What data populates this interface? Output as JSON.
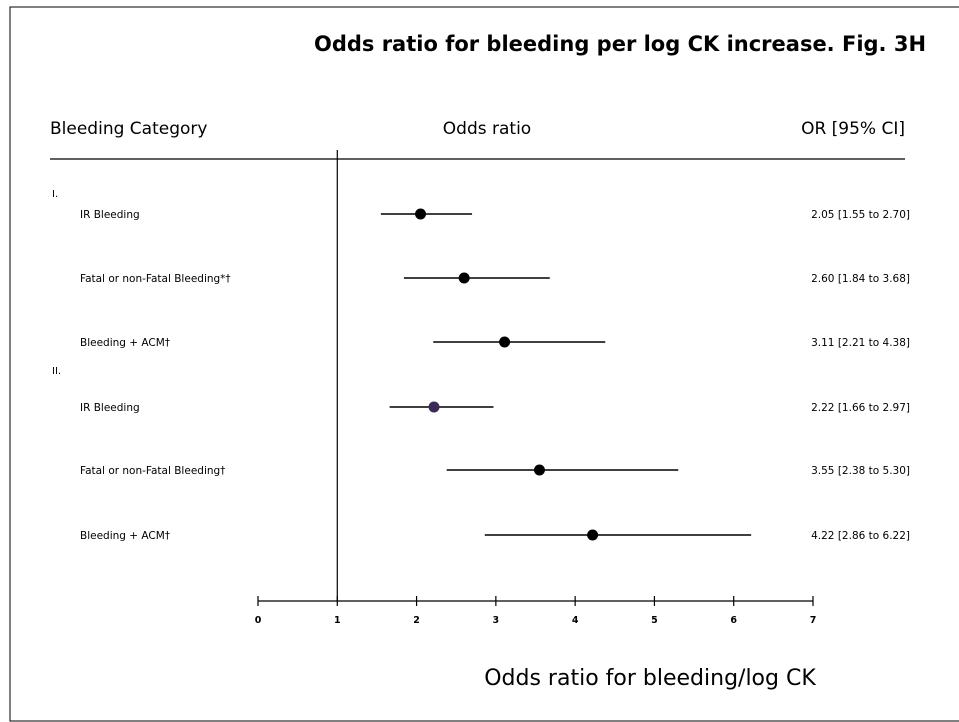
{
  "chart_data": {
    "type": "forest",
    "title": "Odds ratio for bleeding per log CK increase. Fig. 3H",
    "headers": {
      "category": "Bleeding Category",
      "middle": "Odds ratio",
      "ci": "OR [95% CI]"
    },
    "xlabel": "Odds ratio for bleeding/log CK",
    "xlim": [
      0,
      7
    ],
    "xticks": [
      "0",
      "1",
      "2",
      "3",
      "4",
      "5",
      "6",
      "7"
    ],
    "reference_line": 1,
    "sections": [
      "I.",
      "II."
    ],
    "rows": [
      {
        "section": "I.",
        "label": "IR Bleeding",
        "or": 2.05,
        "lo": 1.55,
        "hi": 2.7,
        "ci_text": "2.05 [1.55 to 2.70]",
        "color": "#000000"
      },
      {
        "section": "I.",
        "label": "Fatal or non-Fatal Bleeding*†",
        "or": 2.6,
        "lo": 1.84,
        "hi": 3.68,
        "ci_text": "2.60 [1.84 to 3.68]",
        "color": "#000000"
      },
      {
        "section": "I.",
        "label": "Bleeding + ACM†",
        "or": 3.11,
        "lo": 2.21,
        "hi": 4.38,
        "ci_text": "3.11 [2.21 to 4.38]",
        "color": "#000000"
      },
      {
        "section": "II.",
        "label": "IR Bleeding",
        "or": 2.22,
        "lo": 1.66,
        "hi": 2.97,
        "ci_text": "2.22 [1.66 to 2.97]",
        "color": "#3a2a55"
      },
      {
        "section": "II.",
        "label": "Fatal or non-Fatal Bleeding†",
        "or": 3.55,
        "lo": 2.38,
        "hi": 5.3,
        "ci_text": "3.55 [2.38 to 5.30]",
        "color": "#000000"
      },
      {
        "section": "II.",
        "label": "Bleeding + ACM†",
        "or": 4.22,
        "lo": 2.86,
        "hi": 6.22,
        "ci_text": "4.22 [2.86 to 6.22]",
        "color": "#000000"
      }
    ]
  }
}
